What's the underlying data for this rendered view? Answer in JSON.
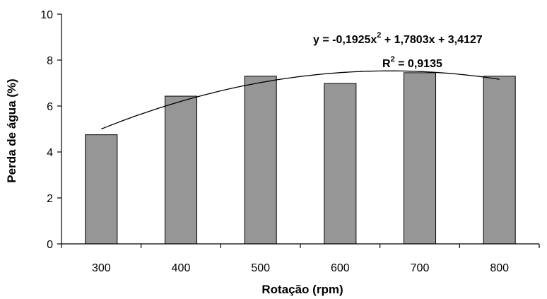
{
  "chart_data": {
    "type": "bar",
    "categories": [
      "300",
      "400",
      "500",
      "600",
      "700",
      "800"
    ],
    "values": [
      4.75,
      6.43,
      7.3,
      6.98,
      7.45,
      7.3
    ],
    "xlabel": "Rotação (rpm)",
    "ylabel": "Perda de água (%)",
    "ylim": [
      0,
      10
    ],
    "yticks": [
      "0",
      "2",
      "4",
      "6",
      "8",
      "10"
    ],
    "grid": false,
    "bar_color": "#969696",
    "trendline": {
      "type": "polynomial",
      "a": -0.1925,
      "b": 1.7803,
      "c": 3.4127,
      "x_from": 1,
      "x_to": 6,
      "equation": {
        "lhs": "y = -0,1925x",
        "exp1": "2",
        "rhs": " + 1,7803x + 3,4127"
      },
      "r2": {
        "base": "R",
        "exp": "2",
        "value": " = 0,9135"
      }
    }
  }
}
